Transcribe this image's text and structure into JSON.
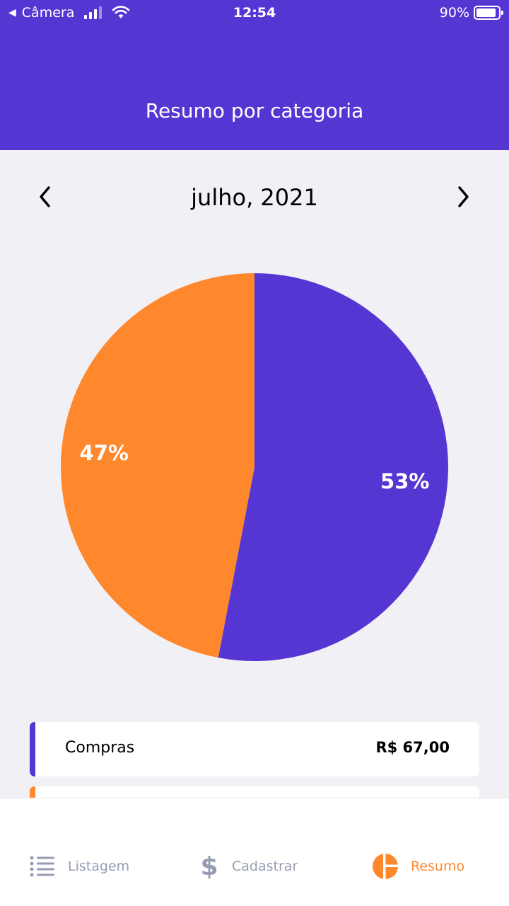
{
  "status_bar": {
    "back_label": "Câmera",
    "time": "12:54",
    "battery": "90%",
    "battery_level": 0.9
  },
  "header": {
    "title": "Resumo por categoria"
  },
  "month_selector": {
    "label": "julho, 2021",
    "prev_icon": "chevron-left-icon",
    "next_icon": "chevron-right-icon"
  },
  "colors": {
    "primary": "#5636d3",
    "accent": "#ff872c",
    "background": "#f0f0f5",
    "inactive": "#969cb2"
  },
  "chart_data": {
    "type": "pie",
    "slices": [
      {
        "label": "53%",
        "value": 53,
        "color": "#5636d3"
      },
      {
        "label": "47%",
        "value": 47,
        "color": "#ff872c"
      }
    ]
  },
  "categories": [
    {
      "name": "Compras",
      "amount": "R$ 67,00",
      "color": "#5636d3"
    },
    {
      "name": "",
      "amount": "",
      "color": "#ff872c"
    }
  ],
  "tabbar": {
    "items": [
      {
        "label": "Listagem",
        "icon": "list-icon"
      },
      {
        "label": "Cadastrar",
        "icon": "dollar-icon"
      },
      {
        "label": "Resumo",
        "icon": "pie-chart-icon",
        "active": true
      }
    ]
  }
}
